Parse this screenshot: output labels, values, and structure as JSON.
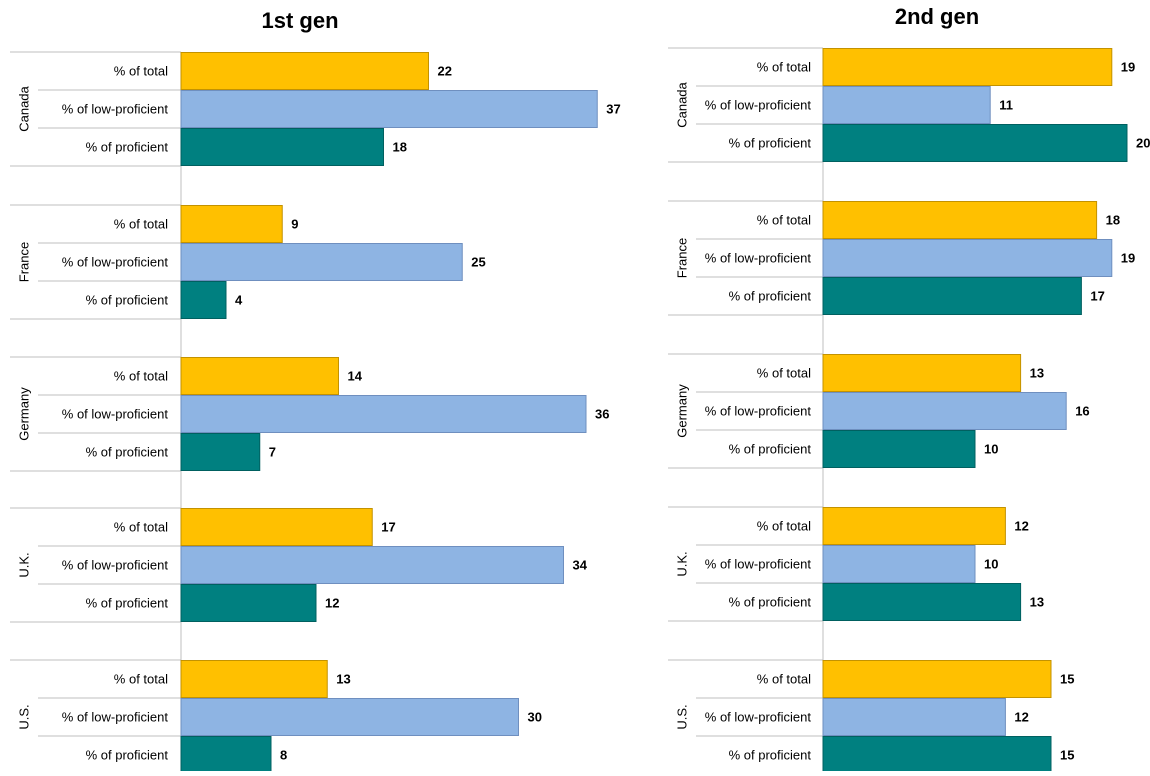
{
  "chart_data": [
    {
      "type": "bar",
      "orientation": "horizontal",
      "title": "1st gen",
      "groups": [
        "Canada",
        "France",
        "Germany",
        "U.K.",
        "U.S."
      ],
      "categories": [
        "% of total",
        "% of low-proficient",
        "% of proficient"
      ],
      "values": [
        [
          22,
          37,
          18
        ],
        [
          9,
          25,
          4
        ],
        [
          14,
          36,
          7
        ],
        [
          17,
          34,
          12
        ],
        [
          13,
          30,
          8
        ]
      ],
      "xlim": [
        0,
        40
      ],
      "grid": false,
      "legend": "none"
    },
    {
      "type": "bar",
      "orientation": "horizontal",
      "title": "2nd gen",
      "groups": [
        "Canada",
        "France",
        "Germany",
        "U.K.",
        "U.S."
      ],
      "categories": [
        "% of total",
        "% of low-proficient",
        "% of proficient"
      ],
      "values": [
        [
          19,
          11,
          20
        ],
        [
          18,
          19,
          17
        ],
        [
          13,
          16,
          10
        ],
        [
          12,
          10,
          13
        ],
        [
          15,
          12,
          15
        ]
      ],
      "xlim": [
        0,
        20
      ],
      "grid": false,
      "legend": "none"
    }
  ],
  "colors": {
    "total": "#FFC000",
    "low_proficient": "#8EB4E3",
    "proficient": "#008080"
  }
}
